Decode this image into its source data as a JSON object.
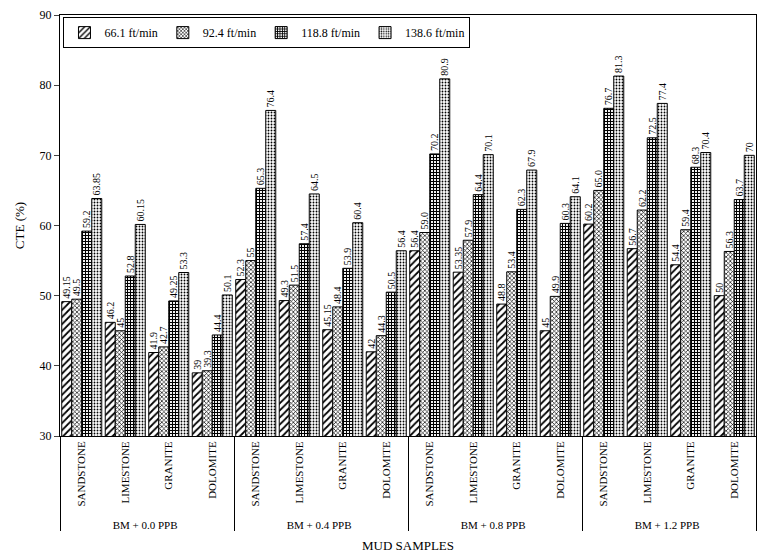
{
  "chart_data": {
    "type": "bar",
    "x_label": "MUD SAMPLES",
    "y_label": "CTE (%)",
    "categories": [
      "SANDSTONE",
      "LIMESTONE",
      "GRANITE",
      "DOLOMITE",
      "SANDSTONE",
      "LIMESTONE",
      "GRANITE",
      "DOLOMITE",
      "SANDSTONE",
      "LIMESTONE",
      "GRANITE",
      "DOLOMITE",
      "SANDSTONE",
      "LIMESTONE",
      "GRANITE",
      "DOLOMITE"
    ],
    "category_groups": [
      "BM + 0.0 PPB",
      "BM + 0.0 PPB",
      "BM + 0.0 PPB",
      "BM + 0.0 PPB",
      "BM + 0.4 PPB",
      "BM + 0.4 PPB",
      "BM + 0.4 PPB",
      "BM + 0.4 PPB",
      "BM + 0.8 PPB",
      "BM + 0.8 PPB",
      "BM + 0.8 PPB",
      "BM + 0.8 PPB",
      "BM + 1.2 PPB",
      "BM + 1.2 PPB",
      "BM + 1.2 PPB",
      "BM + 1.2 PPB"
    ],
    "series": [
      {
        "name": "66.1 ft/min",
        "color": "#000000",
        "values": [
          49.15,
          46.2,
          41.9,
          39,
          52.3,
          49.3,
          45.15,
          42,
          56.4,
          53.35,
          48.8,
          45,
          60.2,
          56.7,
          54.4,
          50
        ],
        "value_labels": [
          "49.15",
          "46.2",
          "41.9",
          "39",
          "52.3",
          "49.3",
          "45.15",
          "42",
          "56.4",
          "53.35",
          "48.8",
          "45",
          "60.2",
          "56.7",
          "54.4",
          "50"
        ]
      },
      {
        "name": "92.4 ft/min",
        "color": "#000000",
        "values": [
          49.5,
          45,
          42.7,
          39.3,
          55,
          51.5,
          48.4,
          44.3,
          59.0,
          57.9,
          53.4,
          49.9,
          65.0,
          62.2,
          59.4,
          56.3
        ],
        "value_labels": [
          "49.5",
          "45",
          "42.7",
          "39.3",
          "55",
          "51.5",
          "48.4",
          "44.3",
          "59.0",
          "57.9",
          "53.4",
          "49.9",
          "65.0",
          "62.2",
          "59.4",
          "56.3"
        ]
      },
      {
        "name": "118.8 ft/min",
        "color": "#000000",
        "values": [
          59.2,
          52.8,
          49.25,
          44.4,
          65.3,
          57.4,
          53.9,
          50.5,
          70.2,
          64.4,
          62.3,
          60.3,
          76.7,
          72.5,
          68.3,
          63.7
        ],
        "value_labels": [
          "59.2",
          "52.8",
          "49.25",
          "44.4",
          "65.3",
          "57.4",
          "53.9",
          "50.5",
          "70.2",
          "64.4",
          "62.3",
          "60.3",
          "76.7",
          "72.5",
          "68.3",
          "63.7"
        ]
      },
      {
        "name": "138.6 ft/min",
        "color": "#000000",
        "values": [
          63.85,
          60.15,
          53.3,
          50.1,
          76.4,
          64.5,
          60.4,
          56.4,
          80.9,
          70.1,
          67.9,
          64.1,
          81.3,
          77.4,
          70.4,
          70
        ],
        "value_labels": [
          "63.85",
          "60.15",
          "53.3",
          "50.1",
          "76.4",
          "64.5",
          "60.4",
          "56.4",
          "80.9",
          "70.1",
          "67.9",
          "64.1",
          "81.3",
          "77.4",
          "70.4",
          "70"
        ]
      }
    ],
    "ylim": [
      30,
      90
    ],
    "yticks": [
      30,
      40,
      50,
      60,
      70,
      80,
      90
    ],
    "grid": false,
    "legend": "upper left",
    "data_labels": true
  }
}
